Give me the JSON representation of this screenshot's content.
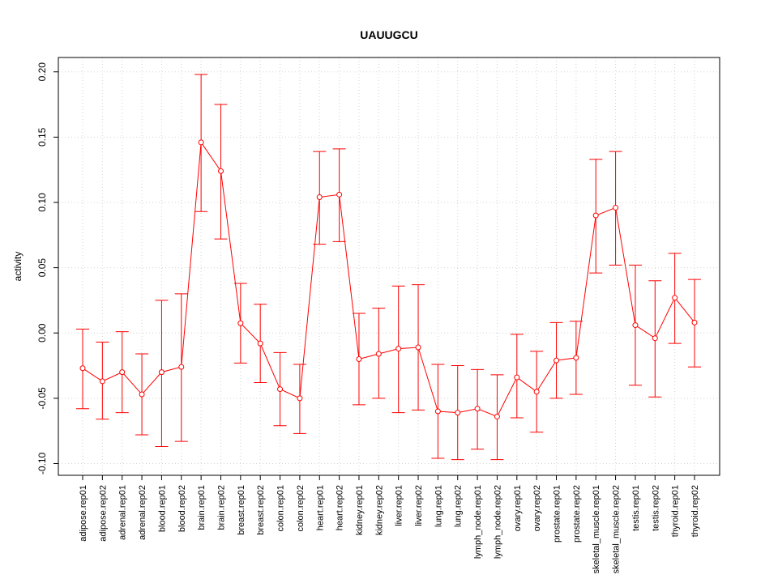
{
  "chart_data": {
    "type": "line",
    "title": "UAUUGCU",
    "xlabel": "",
    "ylabel": "activity",
    "ylim": [
      -0.109,
      0.211
    ],
    "yticks": [
      -0.1,
      -0.05,
      0.0,
      0.05,
      0.1,
      0.15,
      0.2
    ],
    "ytick_labels": [
      "-0.10",
      "-0.05",
      "0.00",
      "0.05",
      "0.10",
      "0.15",
      "0.20"
    ],
    "grid": true,
    "color": "#ff0000",
    "categories": [
      "adipose.rep01",
      "adipose.rep02",
      "adrenal.rep01",
      "adrenal.rep02",
      "blood.rep01",
      "blood.rep02",
      "brain.rep01",
      "brain.rep02",
      "breast.rep01",
      "breast.rep02",
      "colon.rep01",
      "colon.rep02",
      "heart.rep01",
      "heart.rep02",
      "kidney.rep01",
      "kidney.rep02",
      "liver.rep01",
      "liver.rep02",
      "lung.rep01",
      "lung.rep02",
      "lymph_node.rep01",
      "lymph_node.rep02",
      "ovary.rep01",
      "ovary.rep02",
      "prostate.rep01",
      "prostate.rep02",
      "skeletal_muscle.rep01",
      "skeletal_muscle.rep02",
      "testis.rep01",
      "testis.rep02",
      "thyroid.rep01",
      "thyroid.rep02"
    ],
    "values": [
      -0.027,
      -0.037,
      -0.03,
      -0.047,
      -0.03,
      -0.026,
      0.146,
      0.124,
      0.0075,
      -0.008,
      -0.043,
      -0.05,
      0.104,
      0.106,
      -0.02,
      -0.016,
      -0.012,
      -0.011,
      -0.06,
      -0.061,
      -0.058,
      -0.064,
      -0.034,
      -0.045,
      -0.021,
      -0.019,
      0.09,
      0.096,
      0.006,
      -0.004,
      0.027,
      0.008
    ],
    "upper": [
      0.003,
      -0.007,
      0.001,
      -0.016,
      0.025,
      0.03,
      0.198,
      0.175,
      0.038,
      0.022,
      -0.015,
      -0.024,
      0.139,
      0.141,
      0.015,
      0.019,
      0.036,
      0.037,
      -0.024,
      -0.025,
      -0.028,
      -0.032,
      -0.001,
      -0.014,
      0.008,
      0.009,
      0.133,
      0.139,
      0.052,
      0.04,
      0.061,
      0.041
    ],
    "lower": [
      -0.058,
      -0.066,
      -0.061,
      -0.078,
      -0.087,
      -0.083,
      0.093,
      0.072,
      -0.023,
      -0.038,
      -0.071,
      -0.077,
      0.068,
      0.07,
      -0.055,
      -0.05,
      -0.061,
      -0.059,
      -0.096,
      -0.097,
      -0.089,
      -0.097,
      -0.065,
      -0.076,
      -0.05,
      -0.047,
      0.046,
      0.052,
      -0.04,
      -0.049,
      -0.008,
      -0.026
    ]
  }
}
